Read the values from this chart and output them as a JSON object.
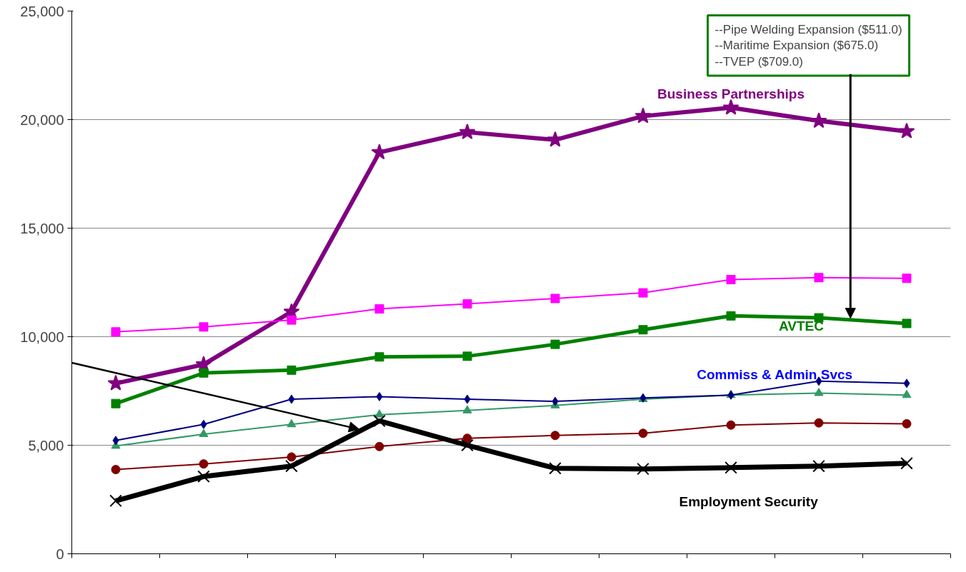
{
  "chart_data": {
    "type": "line",
    "categories": [
      null,
      null,
      null,
      null,
      null,
      null,
      null,
      null,
      null,
      null
    ],
    "ylim": [
      0,
      25000
    ],
    "yticks": [
      {
        "value": 0,
        "label": "0"
      },
      {
        "value": 5000,
        "label": "5,000"
      },
      {
        "value": 10000,
        "label": "10,000"
      },
      {
        "value": 15000,
        "label": "15,000"
      },
      {
        "value": 20000,
        "label": "20,000"
      },
      {
        "value": 25000,
        "label": "25,000"
      }
    ],
    "grid": "y",
    "legend": false,
    "tick_labels": "y",
    "series": [
      {
        "name": "Business Partnerships",
        "color": "#800080",
        "marker": "star",
        "values": [
          7850,
          8720,
          11150,
          18490,
          19420,
          19070,
          20160,
          20550,
          19940,
          19460
        ]
      },
      {
        "color": "#ff00ff",
        "marker": "square",
        "values": [
          10220,
          10450,
          10770,
          11280,
          11510,
          11760,
          12020,
          12630,
          12720,
          12690
        ]
      },
      {
        "name": "AVTEC",
        "color": "#008000",
        "marker": "square",
        "values": [
          6920,
          8330,
          8460,
          9070,
          9100,
          9650,
          10320,
          10960,
          10870,
          10610
        ]
      },
      {
        "name": "Commiss & Admin Svcs",
        "color": "#000080",
        "marker": "diamond",
        "values": [
          5220,
          5960,
          7120,
          7240,
          7120,
          7020,
          7180,
          7310,
          7950,
          7850
        ]
      },
      {
        "color": "#339966",
        "marker": "triangle",
        "values": [
          4970,
          5510,
          5960,
          6410,
          6600,
          6830,
          7120,
          7310,
          7400,
          7310
        ]
      },
      {
        "color": "#800000",
        "marker": "circle",
        "values": [
          3880,
          4140,
          4460,
          4940,
          5320,
          5450,
          5550,
          5930,
          6030,
          5990
        ]
      },
      {
        "name": "Employment Security",
        "color": "#000000",
        "marker": "cross",
        "values": [
          2440,
          3560,
          4040,
          6120,
          5000,
          3940,
          3910,
          3970,
          4040,
          4170
        ]
      }
    ],
    "annotations": [
      "--Pipe Welding Expansion ($511.0)",
      "--Maritime Expansion ($675.0)",
      "--TVEP ($709.0)"
    ]
  }
}
